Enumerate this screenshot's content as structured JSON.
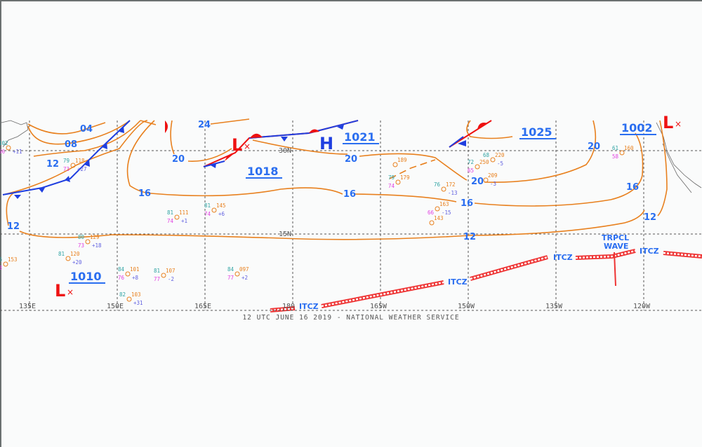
{
  "footer": "12 UTC JUNE 16 2019 - NATIONAL WEATHER SERVICE",
  "colors": {
    "isobar": "#e8801e",
    "label": "#2a6ef0",
    "high": "#1f3fe0",
    "low": "#ee1111",
    "cold_front": "#1f3fe0",
    "warm_front": "#ee1111",
    "itcz": "#ee3333",
    "grid": "#555555"
  },
  "longitude_labels": [
    "135E",
    "150E",
    "165E",
    "180",
    "165W",
    "150W",
    "135W",
    "120W"
  ],
  "latitude_labels": [
    "30N",
    "15N"
  ],
  "isobar_labels": [
    "04",
    "08",
    "12",
    "12",
    "24",
    "20",
    "16",
    "20",
    "16",
    "16",
    "20",
    "20",
    "16",
    "12",
    "12"
  ],
  "pressure_values": [
    "1021",
    "1018",
    "1010",
    "1025",
    "1002"
  ],
  "pressure_centers": [
    {
      "type": "H",
      "label": "H"
    },
    {
      "type": "L",
      "label": "L"
    },
    {
      "type": "L",
      "label": "L"
    },
    {
      "type": "L",
      "label": "L"
    }
  ],
  "features": {
    "itcz_labels": [
      "ITCZ",
      "ITCZ",
      "ITCZ",
      "ITCZ"
    ],
    "tropical_wave": [
      "TRPCL",
      "WAVE"
    ]
  },
  "stations": [
    {
      "temp": "79",
      "pres": "118",
      "dew": "73",
      "tend": "+27"
    },
    {
      "temp": "81",
      "pres": "111",
      "dew": "74",
      "tend": "+1"
    },
    {
      "temp": "81",
      "pres": "145",
      "dew": "74",
      "tend": "+6"
    },
    {
      "temp": "80",
      "pres": "129",
      "dew": "73",
      "tend": "+18"
    },
    {
      "temp": "81",
      "pres": "120",
      "dew": "",
      "tend": "+20"
    },
    {
      "temp": "84",
      "pres": "101",
      "dew": "76",
      "tend": "+8"
    },
    {
      "temp": "81",
      "pres": "107",
      "dew": "77",
      "tend": "-2"
    },
    {
      "temp": "84",
      "pres": "097",
      "dew": "77",
      "tend": "+2"
    },
    {
      "temp": "82",
      "pres": "103",
      "dew": "",
      "tend": "+31"
    },
    {
      "temp": "68",
      "pres": "220",
      "dew": "",
      "tend": "-5"
    },
    {
      "temp": "72",
      "pres": "250",
      "dew": "65",
      "tend": ""
    },
    {
      "temp": "",
      "pres": "209",
      "dew": "",
      "tend": "-3"
    },
    {
      "temp": "79",
      "pres": "179",
      "dew": "74",
      "tend": ""
    },
    {
      "temp": "76",
      "pres": "172",
      "dew": "",
      "tend": "-13"
    },
    {
      "temp": "",
      "pres": "163",
      "dew": "66",
      "tend": "-15"
    },
    {
      "temp": "",
      "pres": "143",
      "dew": "",
      "tend": ""
    },
    {
      "temp": "",
      "pres": "189",
      "dew": "",
      "tend": ""
    },
    {
      "temp": "61",
      "pres": "160",
      "dew": "58",
      "tend": ""
    },
    {
      "temp": "102",
      "pres": "",
      "dew": "66",
      "tend": "+11"
    },
    {
      "temp": "86",
      "pres": "153",
      "dew": "73",
      "tend": ""
    }
  ]
}
